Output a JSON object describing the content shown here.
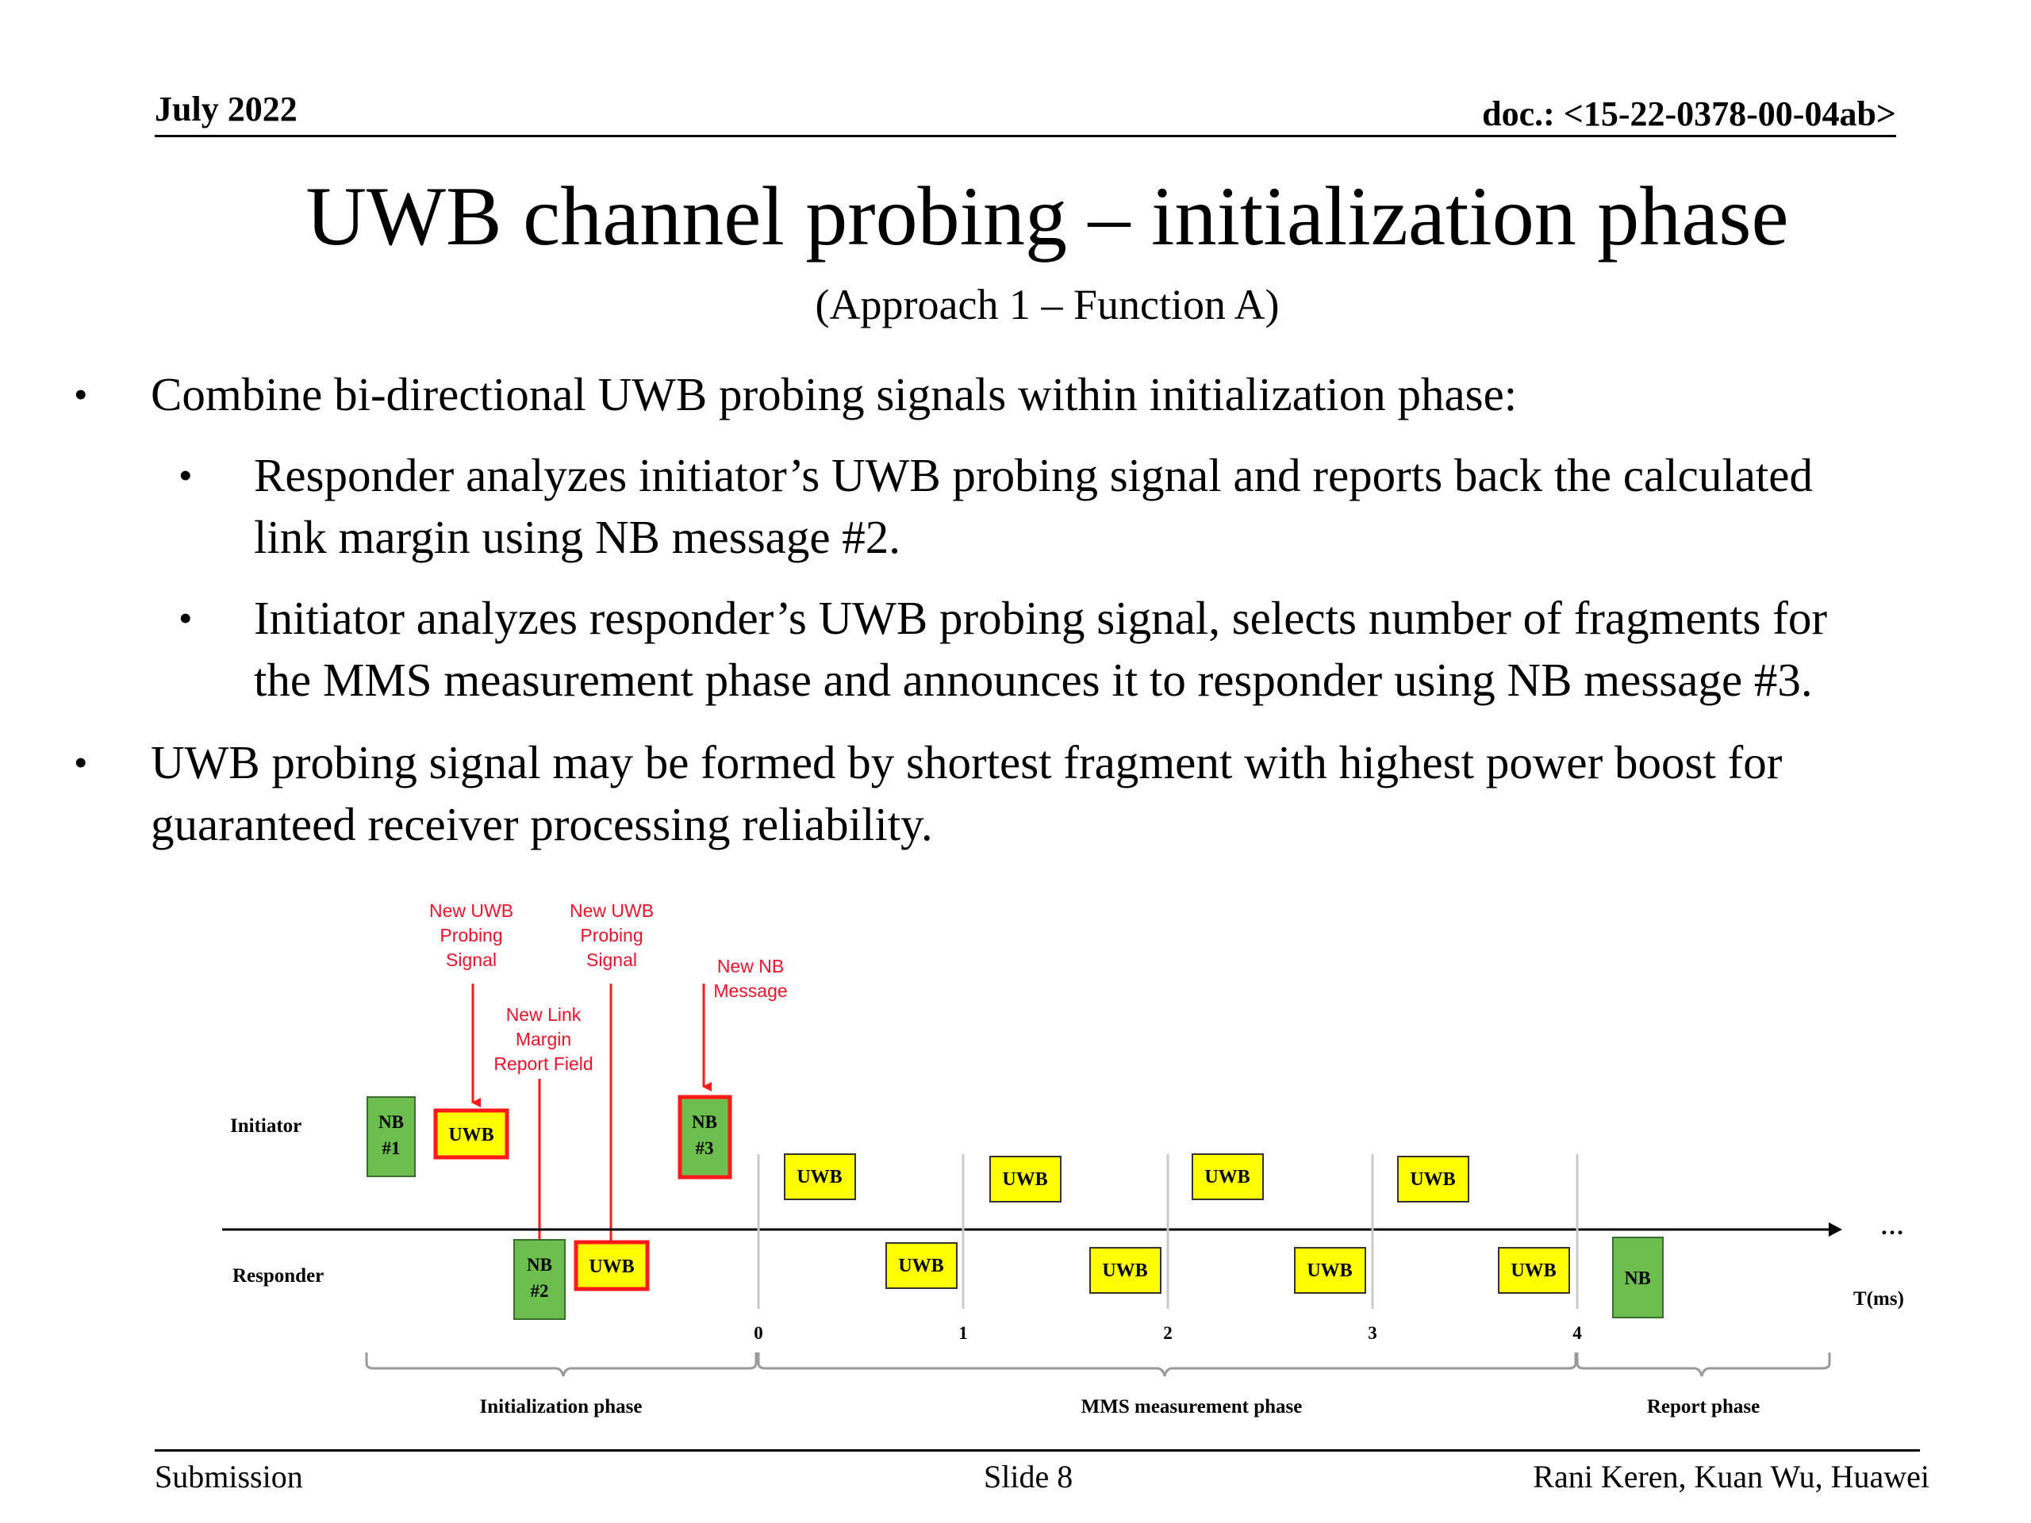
{
  "header": {
    "date": "July 2022",
    "doc": "doc.: <15-22-0378-00-04ab>"
  },
  "title": "UWB channel probing – initialization phase",
  "subtitle": "(Approach 1 – Function A)",
  "bullets": [
    {
      "text": "Combine bi-directional UWB probing signals within initialization phase:",
      "sub": [
        {
          "lines": [
            "Responder analyzes initiator’s UWB probing signal and reports back the calculated",
            "link margin using NB message #2."
          ]
        },
        {
          "lines": [
            "Initiator analyzes responder’s UWB probing signal, selects number of fragments for",
            "the MMS measurement phase and announces it to responder using NB message #3."
          ]
        }
      ]
    },
    {
      "lines": [
        "UWB probing signal may be formed by shortest fragment with highest power boost for",
        "guaranteed receiver processing reliability."
      ]
    }
  ],
  "diagram": {
    "annotations": {
      "probe1": [
        "New UWB",
        "Probing",
        "Signal"
      ],
      "probe2": [
        "New UWB",
        "Probing",
        "Signal"
      ],
      "link_margin": [
        "New Link",
        "Margin",
        "Report Field"
      ],
      "nb_message": [
        "New NB",
        "Message"
      ]
    },
    "row_labels": {
      "initiator": "Initiator",
      "responder": "Responder"
    },
    "boxes": {
      "nb1": [
        "NB",
        "#1"
      ],
      "nb2": [
        "NB",
        "#2"
      ],
      "nb3": [
        "NB",
        "#3"
      ],
      "uwb": "UWB",
      "nb": "NB"
    },
    "ticks": [
      "0",
      "1",
      "2",
      "3",
      "4"
    ],
    "axis_label": "T(ms)",
    "ellipsis": "…",
    "phases": {
      "init": "Initialization phase",
      "mms": "MMS measurement phase",
      "report": "Report phase"
    },
    "colors": {
      "nb_green": "#6cbf4f",
      "uwb_yellow": "#ffff00",
      "highlight_red": "#ff1a1a"
    }
  },
  "footer": {
    "left": "Submission",
    "center": "Slide 8",
    "right": "Rani Keren, Kuan Wu, Huawei"
  }
}
